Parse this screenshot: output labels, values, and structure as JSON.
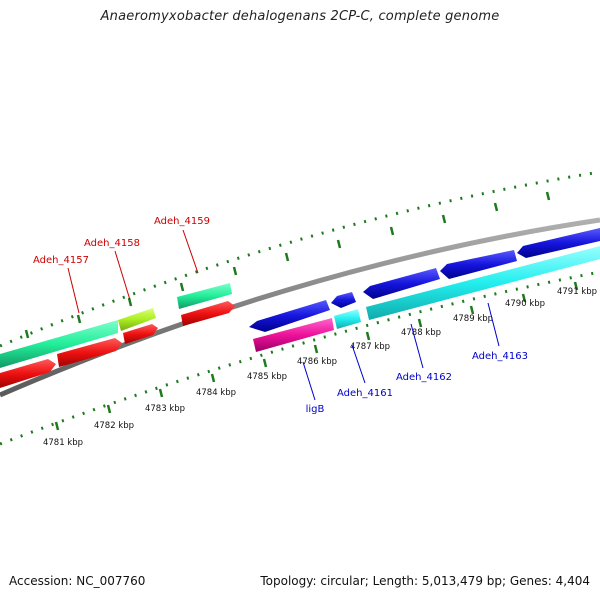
{
  "title": "Anaeromyxobacter dehalogenans 2CP-C, complete genome",
  "footer": {
    "accession": "Accession: NC_007760",
    "summary": "Topology: circular; Length: 5,013,479 bp; Genes: 4,404"
  },
  "colors": {
    "backbone": "#808080",
    "ticks": "#1f7a1f",
    "forward_label": "#0000cc",
    "reverse_label": "#cc0000",
    "cds_forward": "#1515dd",
    "cds_reverse": "#ee1111",
    "trna_like": "#22ee99",
    "rrna_like": "#aaee22",
    "ncrna_like": "#ee1199",
    "gc_like": "#22eeee"
  },
  "kbp_labels": [
    "4781 kbp",
    "4782 kbp",
    "4783 kbp",
    "4784 kbp",
    "4785 kbp",
    "4786 kbp",
    "4787 kbp",
    "4788 kbp",
    "4789 kbp",
    "4790 kbp",
    "4791 kbp"
  ],
  "gene_labels": {
    "adeh_4157": "Adeh_4157",
    "adeh_4158": "Adeh_4158",
    "adeh_4159": "Adeh_4159",
    "ligB": "ligB",
    "adeh_4161": "Adeh_4161",
    "adeh_4162": "Adeh_4162",
    "adeh_4163": "Adeh_4163"
  }
}
